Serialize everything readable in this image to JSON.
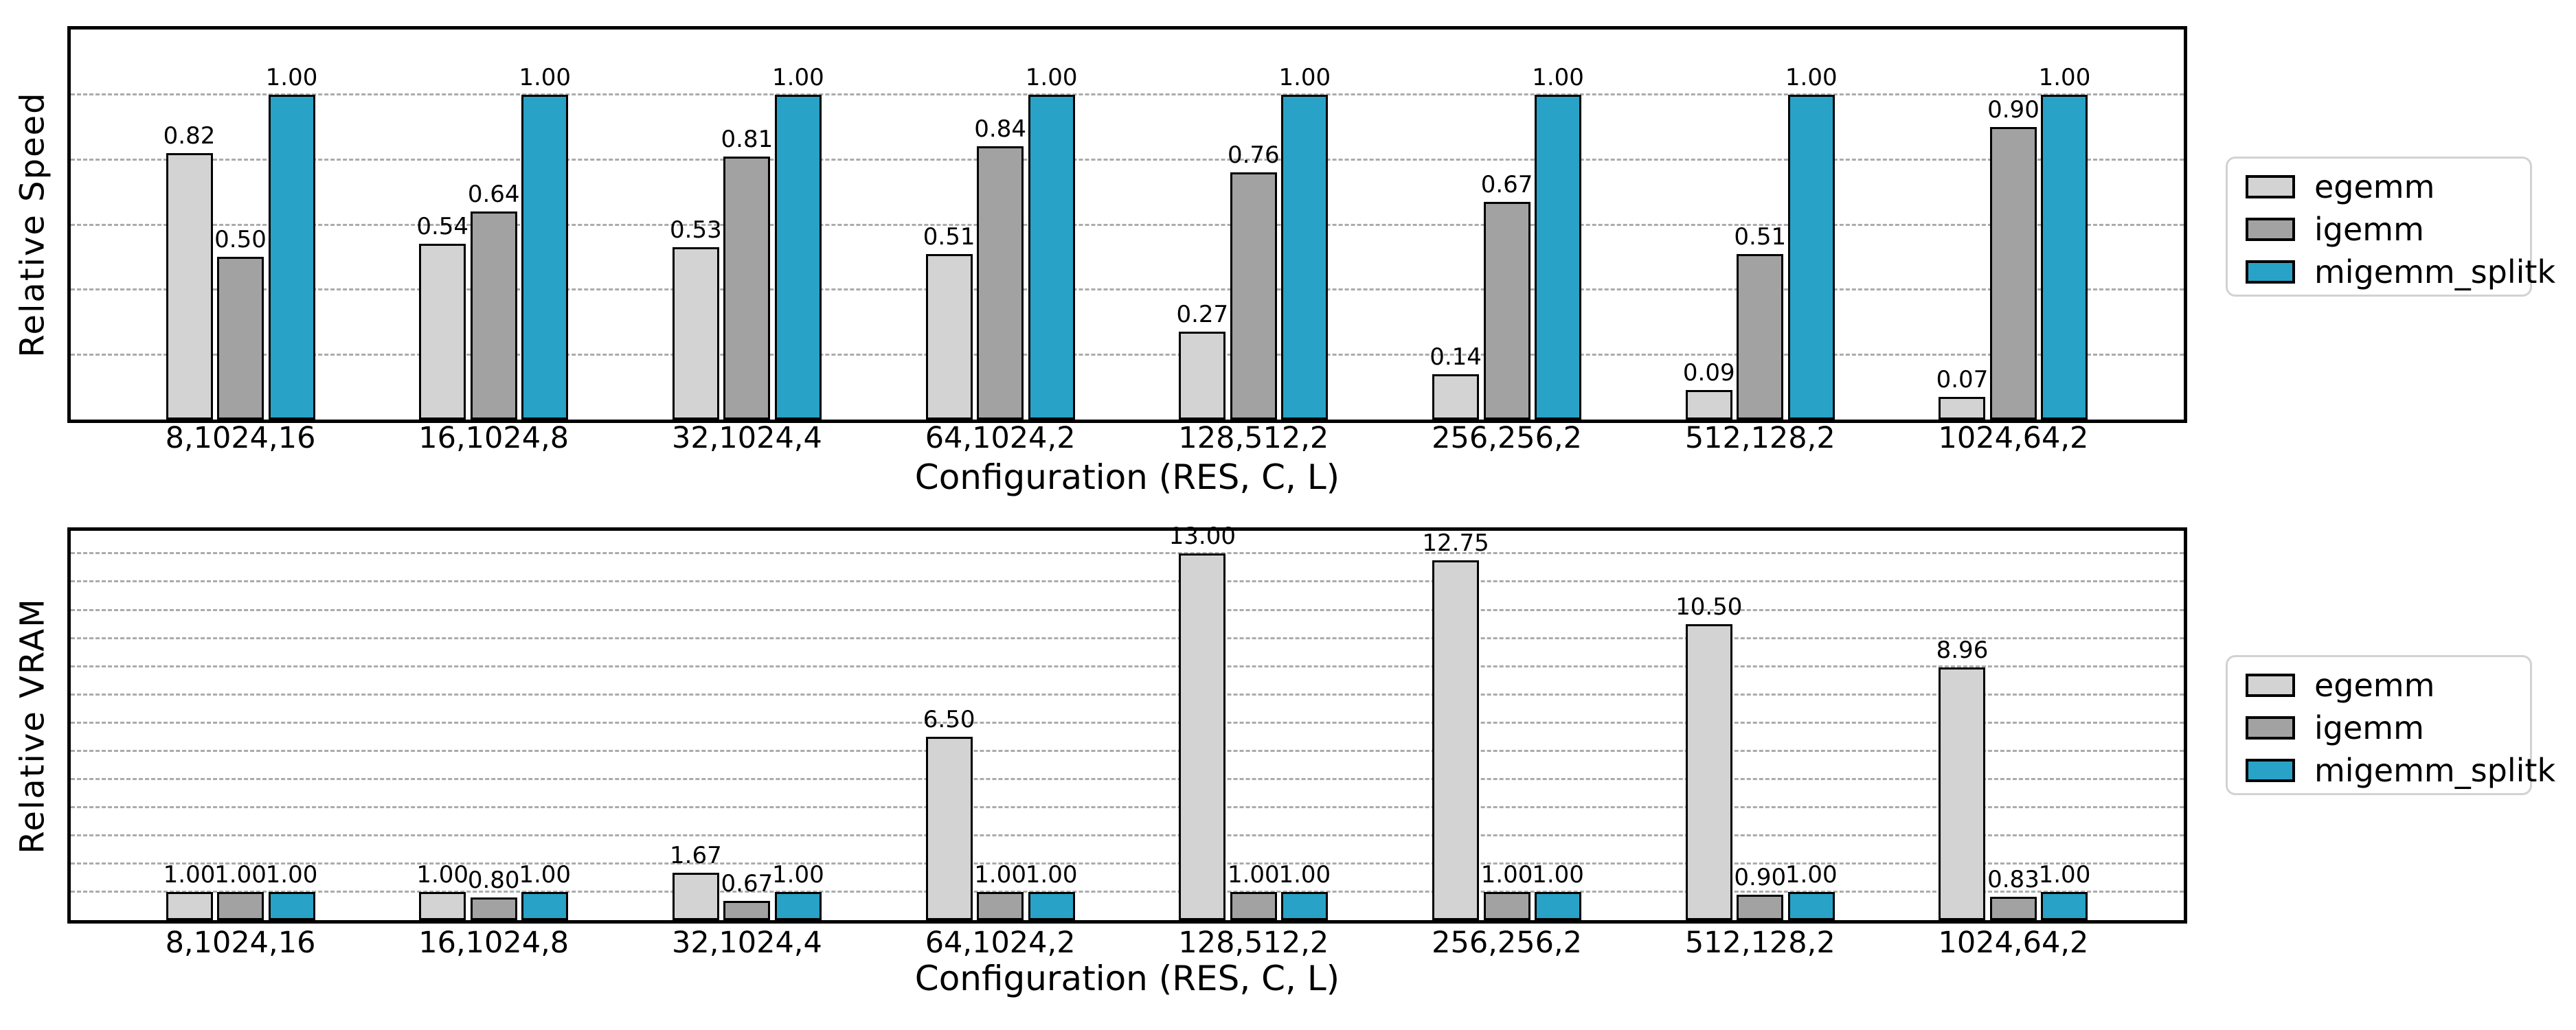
{
  "figure": {
    "background": "#ffffff"
  },
  "chart_data": [
    {
      "type": "bar",
      "title": "",
      "ylabel": "Relative Speed",
      "xlabel": "Configuration (RES, C, L)",
      "categories": [
        "8,1024,16",
        "16,1024,8",
        "32,1024,4",
        "64,1024,2",
        "128,512,2",
        "256,256,2",
        "512,128,2",
        "1024,64,2"
      ],
      "series": [
        {
          "name": "egemm",
          "color": "#d3d3d3",
          "values": [
            0.82,
            0.54,
            0.53,
            0.51,
            0.27,
            0.14,
            0.09,
            0.07
          ]
        },
        {
          "name": "igemm",
          "color": "#a2a2a2",
          "values": [
            0.5,
            0.64,
            0.81,
            0.84,
            0.76,
            0.67,
            0.51,
            0.9
          ]
        },
        {
          "name": "migemm_splitk",
          "color": "#28a2c7",
          "values": [
            1.0,
            1.0,
            1.0,
            1.0,
            1.0,
            1.0,
            1.0,
            1.0
          ]
        }
      ],
      "ylim": [
        0,
        1.2
      ],
      "grid": {
        "step": 0.2,
        "style": "dashed",
        "color": "#ababab"
      },
      "legend_position": "outside-center-right",
      "bar_label_decimals": 2,
      "y_tick_labels_shown": false
    },
    {
      "type": "bar",
      "title": "",
      "ylabel": "Relative VRAM",
      "xlabel": "Configuration (RES, C, L)",
      "categories": [
        "8,1024,16",
        "16,1024,8",
        "32,1024,4",
        "64,1024,2",
        "128,512,2",
        "256,256,2",
        "512,128,2",
        "1024,64,2"
      ],
      "series": [
        {
          "name": "egemm",
          "color": "#d3d3d3",
          "values": [
            1.0,
            1.0,
            1.67,
            6.5,
            13.0,
            12.75,
            10.5,
            8.96
          ]
        },
        {
          "name": "igemm",
          "color": "#a2a2a2",
          "values": [
            1.0,
            0.8,
            0.67,
            1.0,
            1.0,
            1.0,
            0.9,
            0.83
          ]
        },
        {
          "name": "migemm_splitk",
          "color": "#28a2c7",
          "values": [
            1.0,
            1.0,
            1.0,
            1.0,
            1.0,
            1.0,
            1.0,
            1.0
          ]
        }
      ],
      "ylim": [
        0,
        13.8
      ],
      "grid": {
        "step": 1,
        "style": "dashed",
        "color": "#ababab"
      },
      "legend_position": "outside-center-right",
      "bar_label_decimals": 2,
      "y_tick_labels_shown": false
    }
  ]
}
